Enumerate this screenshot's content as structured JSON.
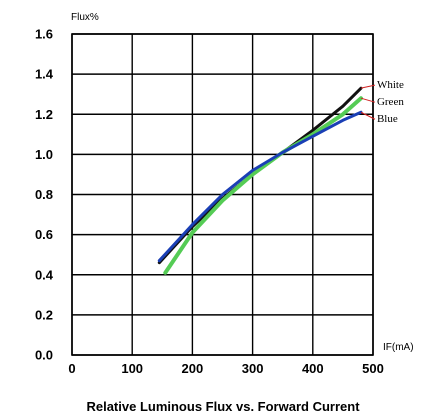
{
  "chart_data": {
    "type": "line",
    "title": "Relative Luminous Flux vs. Forward Current",
    "xlabel": "IF(mA)",
    "ylabel": "Flux%",
    "xlim": [
      0,
      500
    ],
    "ylim": [
      0,
      1.6
    ],
    "x_ticks": [
      0,
      100,
      200,
      300,
      400,
      500
    ],
    "x_tick_labels": [
      "0",
      "100",
      "200",
      "300",
      "400",
      "500"
    ],
    "y_ticks": [
      0,
      0.2,
      0.4,
      0.6,
      0.8,
      1.0,
      1.2,
      1.4,
      1.6
    ],
    "y_tick_labels": [
      "0.0",
      "0.2",
      "0.4",
      "0.6",
      "0.8",
      "1.0",
      "1.2",
      "1.4",
      "1.6"
    ],
    "grid": true,
    "legend_placement": "right",
    "series": [
      {
        "name": "White",
        "color": "#111111",
        "label_color": "#d02020",
        "x": [
          145,
          200,
          250,
          300,
          350,
          400,
          450,
          480
        ],
        "y": [
          0.46,
          0.64,
          0.78,
          0.9,
          1.01,
          1.12,
          1.24,
          1.33
        ]
      },
      {
        "name": "Green",
        "color": "#55cc55",
        "label_color": "#d02020",
        "x": [
          155,
          200,
          250,
          300,
          350,
          400,
          450,
          480
        ],
        "y": [
          0.41,
          0.61,
          0.77,
          0.9,
          1.01,
          1.1,
          1.2,
          1.28
        ]
      },
      {
        "name": "Blue",
        "color": "#1a3fb5",
        "label_color": "#d02020",
        "x": [
          145,
          200,
          250,
          300,
          350,
          400,
          450,
          480
        ],
        "y": [
          0.47,
          0.65,
          0.8,
          0.92,
          1.01,
          1.09,
          1.17,
          1.21
        ]
      }
    ]
  }
}
